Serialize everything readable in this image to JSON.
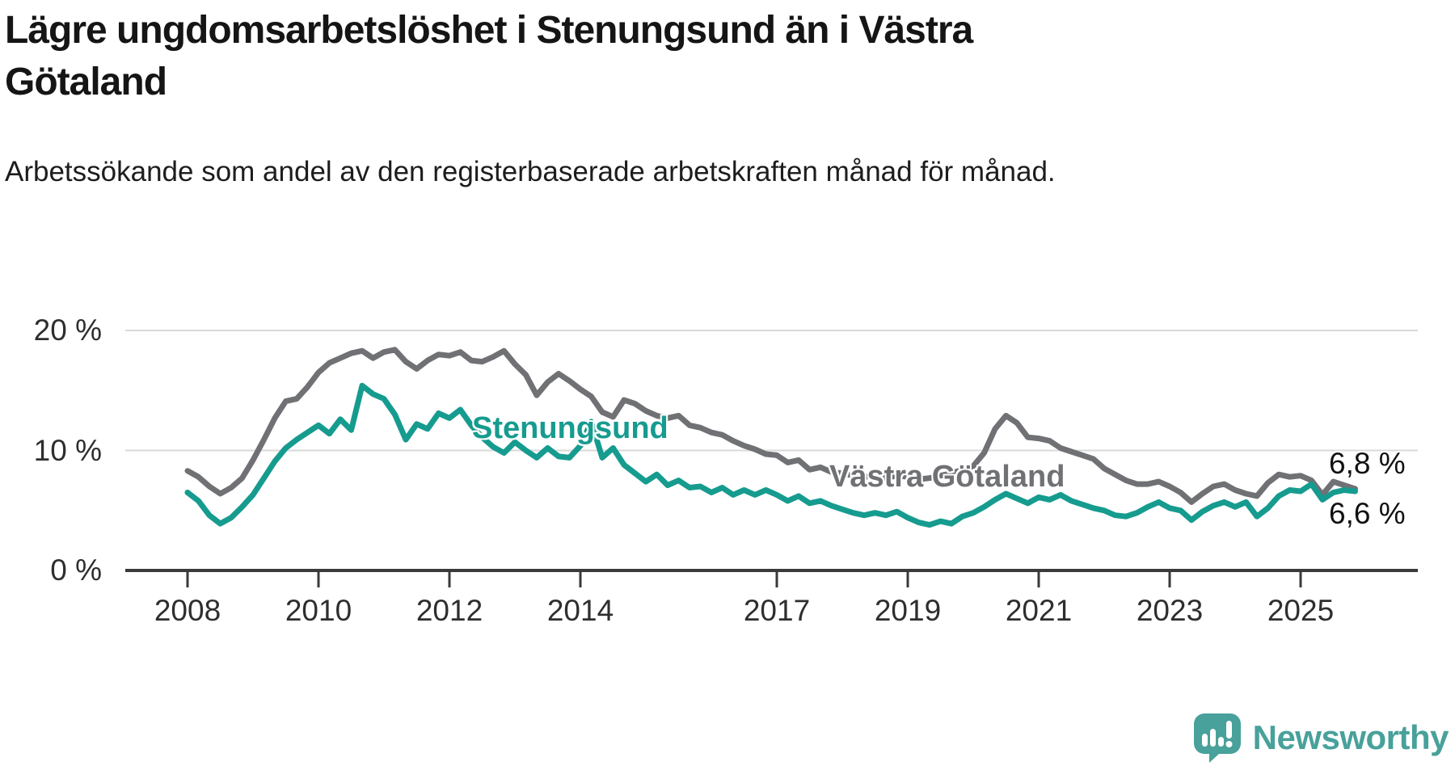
{
  "header": {
    "title": "Lägre ungdomsarbetslöshet i Stenungsund än i Västra Götaland",
    "subtitle": "Arbetssökande som andel av den registerbaserade arbetskraften månad för månad."
  },
  "chart_data": {
    "type": "line",
    "title": "Lägre ungdomsarbetslöshet i Stenungsund än i Västra Götaland",
    "subtitle": "Arbetssökande som andel av den registerbaserade arbetskraften månad för månad.",
    "x_start_year": 2008.0,
    "x_step_years": 0.1666667,
    "x_ticks": [
      2008,
      2010,
      2012,
      2014,
      2017,
      2019,
      2021,
      2023,
      2025
    ],
    "y_ticks": [
      {
        "value": 0,
        "label": "0 %"
      },
      {
        "value": 10,
        "label": "10 %"
      },
      {
        "value": 20,
        "label": "20 %"
      }
    ],
    "ylim": [
      0,
      21.5
    ],
    "grid": "horizontal",
    "legend_position": "inline-labels",
    "series": [
      {
        "name": "Västra Götaland",
        "color": "#707174",
        "end_label": "6,8 %",
        "end_value": 6.8,
        "values": [
          8.3,
          7.8,
          7.0,
          6.4,
          6.9,
          7.7,
          9.2,
          10.9,
          12.7,
          14.1,
          14.3,
          15.3,
          16.5,
          17.3,
          17.7,
          18.1,
          18.3,
          17.7,
          18.2,
          18.4,
          17.4,
          16.8,
          17.5,
          18.0,
          17.9,
          18.2,
          17.5,
          17.4,
          17.8,
          18.3,
          17.2,
          16.3,
          14.6,
          15.7,
          16.4,
          15.8,
          15.1,
          14.5,
          13.2,
          12.8,
          14.2,
          13.9,
          13.3,
          12.9,
          12.7,
          12.9,
          12.1,
          11.9,
          11.5,
          11.3,
          10.8,
          10.4,
          10.1,
          9.7,
          9.6,
          9.0,
          9.2,
          8.4,
          8.6,
          8.2,
          8.1,
          7.9,
          7.8,
          7.9,
          7.7,
          7.9,
          7.8,
          7.6,
          7.7,
          7.9,
          8.1,
          8.4,
          8.7,
          9.8,
          11.8,
          12.9,
          12.3,
          11.1,
          11.0,
          10.8,
          10.2,
          9.9,
          9.6,
          9.3,
          8.5,
          8.0,
          7.5,
          7.2,
          7.2,
          7.4,
          7.0,
          6.5,
          5.7,
          6.4,
          7.0,
          7.2,
          6.7,
          6.4,
          6.2,
          7.3,
          8.0,
          7.8,
          7.9,
          7.5,
          6.3,
          7.4,
          7.1,
          6.8
        ]
      },
      {
        "name": "Stenungsund",
        "color": "#169b8f",
        "end_label": "6,6 %",
        "end_value": 6.6,
        "values": [
          6.5,
          5.8,
          4.6,
          3.9,
          4.4,
          5.3,
          6.3,
          7.7,
          9.1,
          10.2,
          10.9,
          11.5,
          12.1,
          11.4,
          12.6,
          11.7,
          15.4,
          14.7,
          14.3,
          13.0,
          10.9,
          12.2,
          11.8,
          13.1,
          12.7,
          13.4,
          12.1,
          11.1,
          10.3,
          9.8,
          10.7,
          10.0,
          9.4,
          10.2,
          9.5,
          9.4,
          10.4,
          12.4,
          9.4,
          10.2,
          8.8,
          8.1,
          7.4,
          8.0,
          7.1,
          7.5,
          6.9,
          7.0,
          6.5,
          6.9,
          6.3,
          6.7,
          6.3,
          6.7,
          6.3,
          5.8,
          6.2,
          5.6,
          5.8,
          5.4,
          5.1,
          4.8,
          4.6,
          4.8,
          4.6,
          4.9,
          4.4,
          4.0,
          3.8,
          4.1,
          3.9,
          4.5,
          4.8,
          5.3,
          5.9,
          6.4,
          6.0,
          5.6,
          6.1,
          5.9,
          6.3,
          5.8,
          5.5,
          5.2,
          5.0,
          4.6,
          4.5,
          4.8,
          5.3,
          5.7,
          5.2,
          5.0,
          4.2,
          4.9,
          5.4,
          5.7,
          5.3,
          5.7,
          4.5,
          5.2,
          6.2,
          6.7,
          6.6,
          7.2,
          5.9,
          6.5,
          6.7,
          6.6
        ]
      }
    ]
  },
  "annotations": {
    "axis_text_color": "#2e2e2e",
    "axis_line_color": "#3a3a3a",
    "grid_color": "#d9d9d9"
  },
  "footer": {
    "brand": "Newsworthy",
    "brand_color": "#48a19a"
  }
}
